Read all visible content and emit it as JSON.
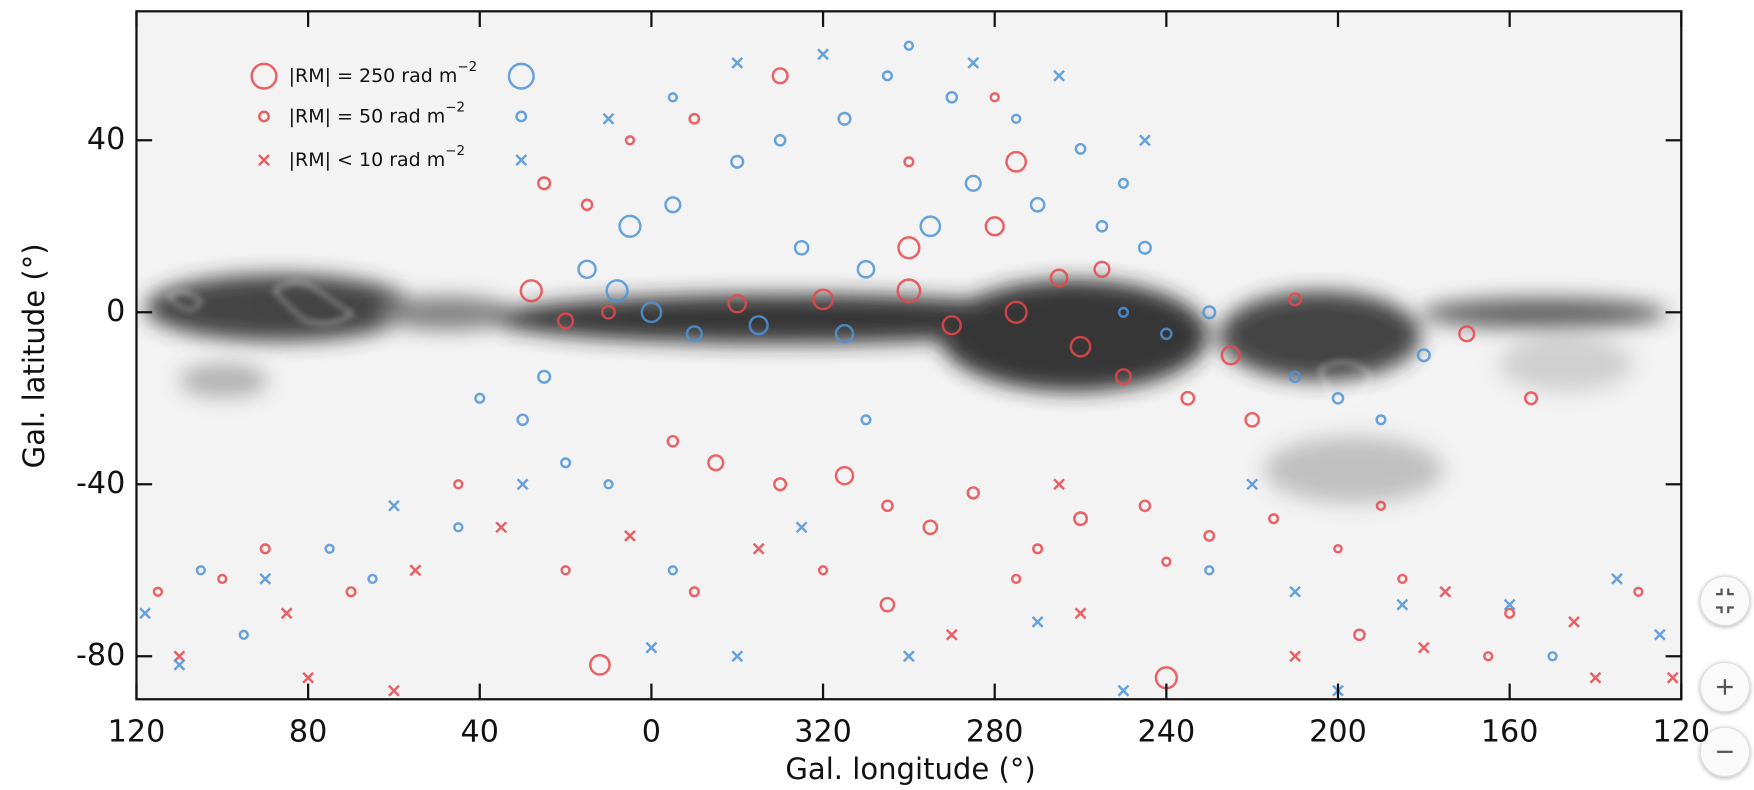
{
  "chart_data": {
    "type": "scatter",
    "xlabel": "Gal. longitude (°)",
    "ylabel": "Gal. latitude (°)",
    "xlim": [
      120,
      -240
    ],
    "xticks": [
      120,
      80,
      40,
      0,
      {
        "value": -40,
        "label": "320"
      },
      {
        "value": -80,
        "label": "280"
      },
      {
        "value": -120,
        "label": "240"
      },
      {
        "value": -160,
        "label": "200"
      },
      {
        "value": -200,
        "label": "160"
      },
      {
        "value": -240,
        "label": "120"
      }
    ],
    "ylim": [
      -90,
      70
    ],
    "yticks": [
      40,
      0,
      -40,
      -80
    ],
    "legend": {
      "position": "upper left",
      "entries": [
        {
          "label": "|RM| = 250 rad m",
          "sup": "−2",
          "size": 250,
          "marker": "circle"
        },
        {
          "label": "|RM| = 50 rad m",
          "sup": "−2",
          "size": 50,
          "marker": "circle"
        },
        {
          "label": "|RM| < 10 rad m",
          "sup": "−2",
          "size": 10,
          "marker": "cross"
        }
      ]
    },
    "series": [
      {
        "color": "#e8464b",
        "x": [
          28,
          20,
          10,
          -20,
          -40,
          -60,
          -70,
          -85,
          -95,
          -100,
          -110,
          -125,
          -135,
          -140,
          -150,
          -5,
          -15,
          -30,
          -45,
          -55,
          -65,
          -75,
          -90,
          -100,
          -115,
          -120,
          -130,
          -145,
          -160,
          -175,
          -185,
          -200,
          -215,
          -230,
          -238,
          -220,
          -195,
          -180,
          -165,
          -150,
          -120,
          -100,
          -85,
          -70,
          -55,
          -40,
          -25,
          -10,
          5,
          12,
          20,
          35,
          45,
          55,
          70,
          85,
          100,
          110,
          115,
          80,
          60,
          90,
          25,
          15,
          5,
          -30,
          -10,
          -60,
          -85,
          -80,
          -95,
          -170,
          -190,
          -205,
          -60,
          -80,
          -105
        ],
        "y": [
          5,
          -2,
          0,
          2,
          3,
          5,
          -3,
          0,
          8,
          -8,
          -15,
          -20,
          -10,
          -25,
          3,
          -30,
          -35,
          -40,
          -38,
          -45,
          -50,
          -42,
          -55,
          -48,
          -45,
          -58,
          -52,
          -48,
          -55,
          -62,
          -65,
          -70,
          -72,
          -65,
          -85,
          -85,
          -80,
          -78,
          -75,
          -80,
          -85,
          -70,
          -62,
          -75,
          -68,
          -60,
          -55,
          -65,
          -52,
          -82,
          -60,
          -50,
          -40,
          -60,
          -65,
          -70,
          -62,
          -80,
          -65,
          -85,
          -88,
          -55,
          30,
          25,
          40,
          55,
          45,
          35,
          35,
          50,
          -40,
          -45,
          -5,
          -20,
          15,
          20,
          10
        ],
        "sizes": [
          200,
          120,
          90,
          150,
          180,
          220,
          160,
          200,
          140,
          180,
          120,
          90,
          160,
          100,
          80,
          60,
          120,
          80,
          150,
          60,
          100,
          70,
          40,
          90,
          60,
          30,
          50,
          40,
          20,
          30,
          5,
          40,
          5,
          30,
          5,
          5,
          30,
          5,
          60,
          5,
          200,
          5,
          30,
          5,
          100,
          30,
          5,
          40,
          5,
          180,
          30,
          5,
          30,
          5,
          40,
          5,
          30,
          5,
          30,
          5,
          5,
          40,
          80,
          60,
          30,
          120,
          50,
          40,
          180,
          30,
          5,
          30,
          120,
          80,
          200,
          160,
          120
        ]
      },
      {
        "color": "#4d93d8",
        "x": [
          30,
          40,
          25,
          15,
          8,
          0,
          -10,
          -25,
          -35,
          -50,
          -65,
          -75,
          -90,
          -105,
          -115,
          -120,
          -110,
          -130,
          -160,
          -170,
          5,
          -5,
          -20,
          -30,
          -45,
          -55,
          -70,
          -85,
          -100,
          -110,
          -40,
          -60,
          -75,
          -95,
          -115,
          -20,
          -5,
          10,
          20,
          10,
          30,
          45,
          60,
          75,
          90,
          105,
          118,
          110,
          95,
          -5,
          -20,
          -35,
          -90,
          -110,
          -140,
          -150,
          -175,
          -200,
          -225,
          -235,
          -210,
          -160,
          -130,
          -60,
          0,
          65,
          -50,
          -45,
          -180,
          -150
        ],
        "y": [
          -25,
          -20,
          -15,
          10,
          5,
          0,
          -5,
          -3,
          15,
          10,
          20,
          30,
          25,
          20,
          15,
          -5,
          0,
          0,
          -20,
          -25,
          20,
          25,
          35,
          40,
          45,
          55,
          50,
          45,
          38,
          30,
          60,
          62,
          58,
          55,
          40,
          58,
          50,
          45,
          -35,
          -40,
          -40,
          -50,
          -45,
          -55,
          -62,
          -60,
          -70,
          -82,
          -75,
          -60,
          -80,
          -50,
          -72,
          -88,
          -40,
          -65,
          -68,
          -68,
          -62,
          -75,
          -80,
          -88,
          -60,
          -80,
          -78,
          -62,
          -25,
          -5,
          -10,
          -15
        ],
        "sizes": [
          60,
          40,
          80,
          150,
          200,
          180,
          120,
          160,
          100,
          140,
          180,
          120,
          100,
          60,
          80,
          60,
          40,
          80,
          60,
          40,
          200,
          120,
          80,
          60,
          80,
          40,
          60,
          30,
          50,
          40,
          5,
          30,
          5,
          5,
          5,
          5,
          30,
          5,
          40,
          30,
          5,
          30,
          5,
          30,
          5,
          30,
          5,
          5,
          30,
          30,
          5,
          5,
          5,
          5,
          5,
          5,
          5,
          5,
          5,
          5,
          30,
          5,
          30,
          5,
          5,
          30,
          40,
          150,
          80,
          60
        ]
      }
    ]
  }
}
